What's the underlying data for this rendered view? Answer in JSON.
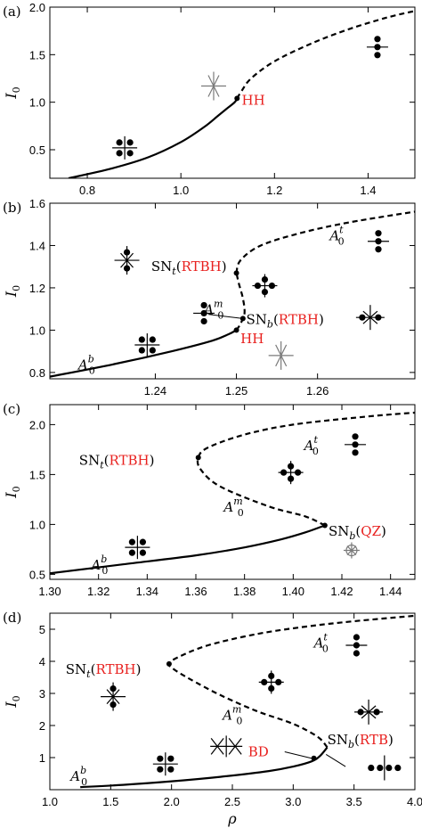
{
  "colors": {
    "curve": "#000000",
    "highlight": "#e8201e",
    "gray_marker": "#7a7a7a"
  },
  "chart_data": [
    {
      "panel_label": "(a)",
      "type": "line",
      "ylabel": "I",
      "ylabel_sub": "0",
      "xlim": [
        0.72,
        1.5
      ],
      "ylim": [
        0.2,
        2.0
      ],
      "xticks": [
        "0.8",
        "1.0",
        "1.2",
        "1.4"
      ],
      "yticks": [
        "0.5",
        "1.0",
        "1.5",
        "2.0"
      ],
      "series": [
        {
          "style": "solid",
          "x": [
            0.76,
            0.85,
            0.93,
            1.0,
            1.05,
            1.08,
            1.1,
            1.115,
            1.12
          ],
          "y": [
            0.2,
            0.3,
            0.42,
            0.58,
            0.74,
            0.86,
            0.94,
            1.0,
            1.04
          ]
        },
        {
          "style": "dashed",
          "x": [
            1.12,
            1.13,
            1.15,
            1.2,
            1.28,
            1.36,
            1.44,
            1.5
          ],
          "y": [
            1.04,
            1.12,
            1.25,
            1.43,
            1.62,
            1.77,
            1.89,
            1.96
          ]
        }
      ],
      "points": [
        {
          "x": 1.12,
          "y": 1.04
        }
      ],
      "annotations": [
        {
          "text": "HH",
          "x": 1.13,
          "y": 1.02,
          "color": "red"
        }
      ],
      "markers": [
        {
          "kind": "plus4",
          "x": 0.88,
          "y": 0.52
        },
        {
          "kind": "cross_v",
          "x": 1.07,
          "y": 1.17,
          "gray": true
        },
        {
          "kind": "vert3",
          "x": 1.42,
          "y": 1.58
        }
      ]
    },
    {
      "panel_label": "(b)",
      "type": "line",
      "ylabel": "I",
      "ylabel_sub": "0",
      "xlim": [
        1.227,
        1.272
      ],
      "ylim": [
        0.77,
        1.6
      ],
      "xticks": [
        "1.24",
        "1.25",
        "1.26"
      ],
      "yticks": [
        "0.8",
        "1.0",
        "1.2",
        "1.4",
        "1.6"
      ],
      "series": [
        {
          "style": "solid",
          "x": [
            1.227,
            1.235,
            1.242,
            1.247,
            1.249,
            1.25
          ],
          "y": [
            0.78,
            0.84,
            0.9,
            0.95,
            0.98,
            1.0
          ]
        },
        {
          "style": "dashed",
          "x": [
            1.25,
            1.2505,
            1.251,
            1.2508,
            1.2503,
            1.25
          ],
          "y": [
            1.0,
            1.03,
            1.08,
            1.15,
            1.22,
            1.27
          ]
        },
        {
          "style": "dashed",
          "x": [
            1.25,
            1.2505,
            1.253,
            1.258,
            1.264,
            1.272
          ],
          "y": [
            1.27,
            1.33,
            1.4,
            1.46,
            1.51,
            1.56
          ]
        }
      ],
      "points": [
        {
          "x": 1.25,
          "y": 1.0
        },
        {
          "x": 1.2508,
          "y": 1.055
        },
        {
          "x": 1.25,
          "y": 1.27
        }
      ],
      "annotations": [
        {
          "prefix": "SN",
          "sub": "t",
          "text": "RTBH",
          "x": 1.2395,
          "y": 1.3
        },
        {
          "prefix": "SN",
          "sub": "b",
          "text": "RTBH",
          "x": 1.2512,
          "y": 1.05
        },
        {
          "text": "HH",
          "x": 1.2505,
          "y": 0.96,
          "color": "red"
        }
      ],
      "state_labels": [
        {
          "base": "A",
          "sub": "0",
          "sup": "t",
          "x": 1.2615,
          "y": 1.45
        },
        {
          "base": "A",
          "sub": "0",
          "sup": "m",
          "x": 1.246,
          "y": 1.1
        },
        {
          "base": "A",
          "sub": "0",
          "sup": "b",
          "x": 1.2305,
          "y": 0.84
        }
      ],
      "markers": [
        {
          "kind": "vert3_side",
          "x": 1.2675,
          "y": 1.42
        },
        {
          "kind": "cross_v_dots",
          "x": 1.2365,
          "y": 1.33
        },
        {
          "kind": "plus4_dots",
          "x": 1.2535,
          "y": 1.21
        },
        {
          "kind": "vert3_side",
          "x": 1.246,
          "y": 1.08
        },
        {
          "kind": "cross_h_dots",
          "x": 1.2665,
          "y": 1.06
        },
        {
          "kind": "plus4",
          "x": 1.239,
          "y": 0.93
        },
        {
          "kind": "cross_v",
          "x": 1.2555,
          "y": 0.88,
          "gray": true
        }
      ],
      "connector": {
        "from": [
          1.2465,
          1.075
        ],
        "to": [
          1.2508,
          1.055
        ]
      }
    },
    {
      "panel_label": "(c)",
      "type": "line",
      "ylabel": "I",
      "ylabel_sub": "0",
      "xlim": [
        1.3,
        1.45
      ],
      "ylim": [
        0.45,
        2.2
      ],
      "xticks": [
        "1.30",
        "1.32",
        "1.34",
        "1.36",
        "1.38",
        "1.40",
        "1.42",
        "1.44"
      ],
      "yticks": [
        "0.5",
        "1.0",
        "1.5",
        "2.0"
      ],
      "series": [
        {
          "style": "solid",
          "x": [
            1.3,
            1.33,
            1.36,
            1.38,
            1.395,
            1.405,
            1.413
          ],
          "y": [
            0.51,
            0.6,
            0.69,
            0.77,
            0.85,
            0.92,
            0.99
          ]
        },
        {
          "style": "dashed",
          "x": [
            1.413,
            1.405,
            1.39,
            1.37,
            1.362,
            1.361,
            1.365,
            1.38,
            1.4,
            1.43,
            1.45
          ],
          "y": [
            0.99,
            1.08,
            1.18,
            1.38,
            1.55,
            1.67,
            1.77,
            1.9,
            2.0,
            2.08,
            2.12
          ]
        }
      ],
      "points": [
        {
          "x": 1.413,
          "y": 0.99
        },
        {
          "x": 1.361,
          "y": 1.67
        }
      ],
      "annotations": [
        {
          "prefix": "SN",
          "sub": "t",
          "text": "RTBH",
          "x": 1.312,
          "y": 1.64
        },
        {
          "prefix": "SN",
          "sub": "b",
          "text": "QZ",
          "x": 1.4145,
          "y": 0.93
        }
      ],
      "state_labels": [
        {
          "base": "A",
          "sub": "0",
          "sup": "t",
          "x": 1.4045,
          "y": 1.8
        },
        {
          "base": "A",
          "sub": "0",
          "sup": "m",
          "x": 1.3715,
          "y": 1.18
        },
        {
          "base": "A",
          "sub": "0",
          "sup": "b",
          "x": 1.317,
          "y": 0.6
        }
      ],
      "markers": [
        {
          "kind": "vert3_side",
          "x": 1.4255,
          "y": 1.8
        },
        {
          "kind": "plus4_dots",
          "x": 1.399,
          "y": 1.52
        },
        {
          "kind": "plus4",
          "x": 1.336,
          "y": 0.77
        },
        {
          "kind": "circle_x",
          "x": 1.424,
          "y": 0.74,
          "gray": true
        }
      ]
    },
    {
      "panel_label": "(d)",
      "type": "line",
      "ylabel": "I",
      "ylabel_sub": "0",
      "xlabel": "ρ",
      "xlim": [
        1.0,
        4.0
      ],
      "ylim": [
        0.0,
        5.5
      ],
      "xticks": [
        "1.0",
        "1.5",
        "2.0",
        "2.5",
        "3.0",
        "3.5",
        "4.0"
      ],
      "yticks": [
        "1",
        "2",
        "3",
        "4",
        "5"
      ],
      "series": [
        {
          "style": "solid",
          "x": [
            1.25,
            1.6,
            2.0,
            2.4,
            2.8,
            3.0,
            3.15,
            3.22,
            3.28
          ],
          "y": [
            0.08,
            0.15,
            0.26,
            0.4,
            0.58,
            0.72,
            0.88,
            1.05,
            1.32
          ]
        },
        {
          "style": "dashed",
          "x": [
            3.28,
            3.2,
            3.0,
            2.7,
            2.4,
            2.15,
            2.02,
            1.98,
            2.05,
            2.3,
            2.7,
            3.1,
            3.5,
            4.0
          ],
          "y": [
            1.32,
            1.65,
            2.05,
            2.45,
            2.95,
            3.45,
            3.75,
            3.92,
            4.12,
            4.5,
            4.85,
            5.08,
            5.25,
            5.42
          ]
        }
      ],
      "points": [
        {
          "x": 3.17,
          "y": 0.98
        },
        {
          "x": 1.98,
          "y": 3.92
        }
      ],
      "annotations": [
        {
          "prefix": "SN",
          "sub": "t",
          "text": "RTBH",
          "x": 1.13,
          "y": 3.75
        },
        {
          "prefix": "SN",
          "sub": "b",
          "text": "RTB",
          "x": 3.28,
          "y": 1.55
        },
        {
          "text": "BD",
          "x": 2.63,
          "y": 1.18,
          "color": "red"
        }
      ],
      "state_labels": [
        {
          "base": "A",
          "sub": "0",
          "sup": "t",
          "x": 3.17,
          "y": 4.6
        },
        {
          "base": "A",
          "sub": "0",
          "sup": "m",
          "x": 2.42,
          "y": 2.35
        },
        {
          "base": "A",
          "sub": "0",
          "sup": "b",
          "x": 1.17,
          "y": 0.45
        }
      ],
      "markers": [
        {
          "kind": "vert3_side",
          "x": 3.52,
          "y": 4.5
        },
        {
          "kind": "cross_v_dots",
          "x": 1.52,
          "y": 2.9
        },
        {
          "kind": "plus4_dots",
          "x": 2.82,
          "y": 3.35
        },
        {
          "kind": "cross_h_dots",
          "x": 3.62,
          "y": 2.42
        },
        {
          "kind": "double_cross",
          "x": 2.45,
          "y": 1.35
        },
        {
          "kind": "plus4",
          "x": 1.95,
          "y": 0.8
        },
        {
          "kind": "dots4_line",
          "x": 3.75,
          "y": 0.68
        }
      ],
      "connectors": [
        {
          "from": [
            2.93,
            1.18
          ],
          "to": [
            3.15,
            0.98
          ]
        },
        {
          "from": [
            3.27,
            1.1
          ],
          "to": [
            3.43,
            0.72
          ]
        }
      ]
    }
  ]
}
